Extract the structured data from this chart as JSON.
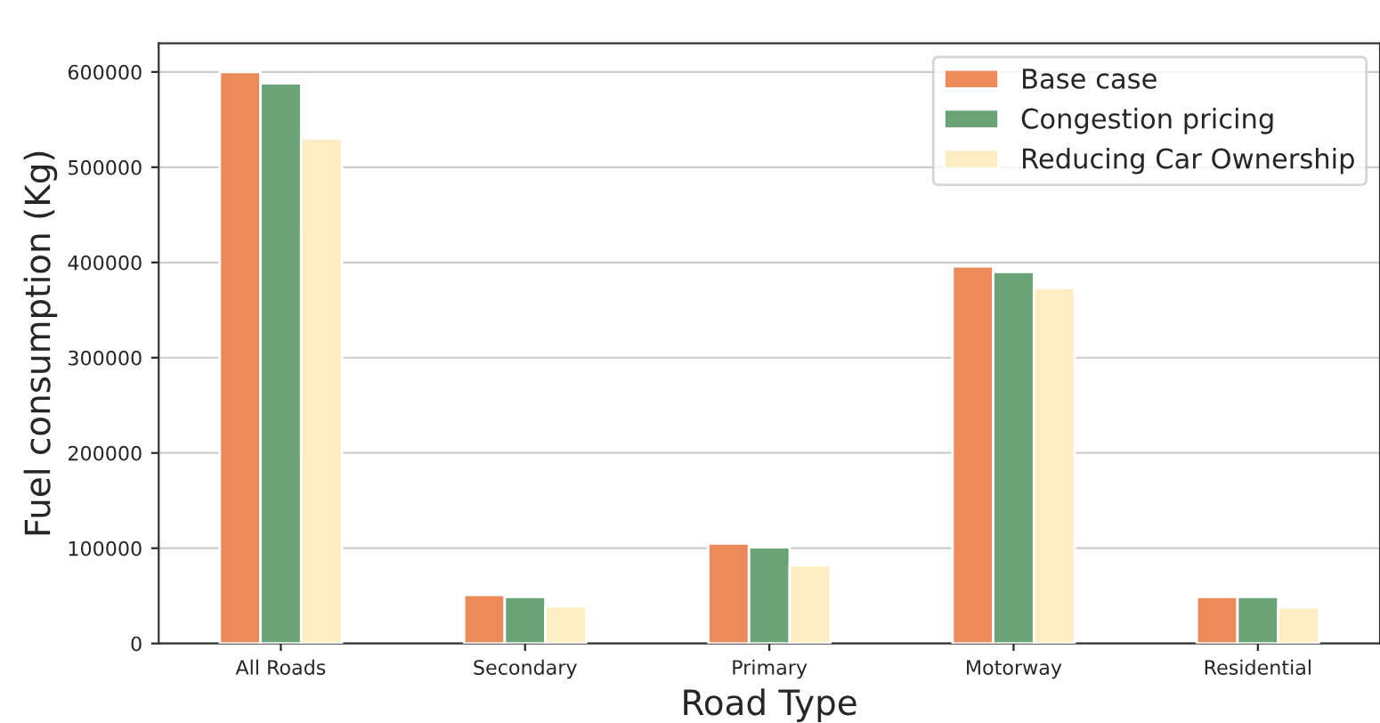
{
  "chart_data": {
    "type": "bar",
    "xlabel": "Road Type",
    "ylabel": "Fuel consumption (Kg)",
    "categories": [
      "All Roads",
      "Secondary",
      "Primary",
      "Motorway",
      "Residential"
    ],
    "series": [
      {
        "name": "Base case",
        "color": "#ec8a5c",
        "values": [
          600000,
          51000,
          105000,
          396000,
          49000
        ]
      },
      {
        "name": "Congestion pricing",
        "color": "#6aa476",
        "values": [
          588000,
          49000,
          101000,
          390000,
          49000
        ]
      },
      {
        "name": "Reducing Car Ownership",
        "color": "#feedc2",
        "values": [
          530000,
          39000,
          82000,
          373000,
          38000
        ]
      }
    ],
    "ylim": [
      0,
      630000
    ],
    "yticks": [
      0,
      100000,
      200000,
      300000,
      400000,
      500000,
      600000
    ],
    "grid": "y",
    "legend": "top right"
  }
}
